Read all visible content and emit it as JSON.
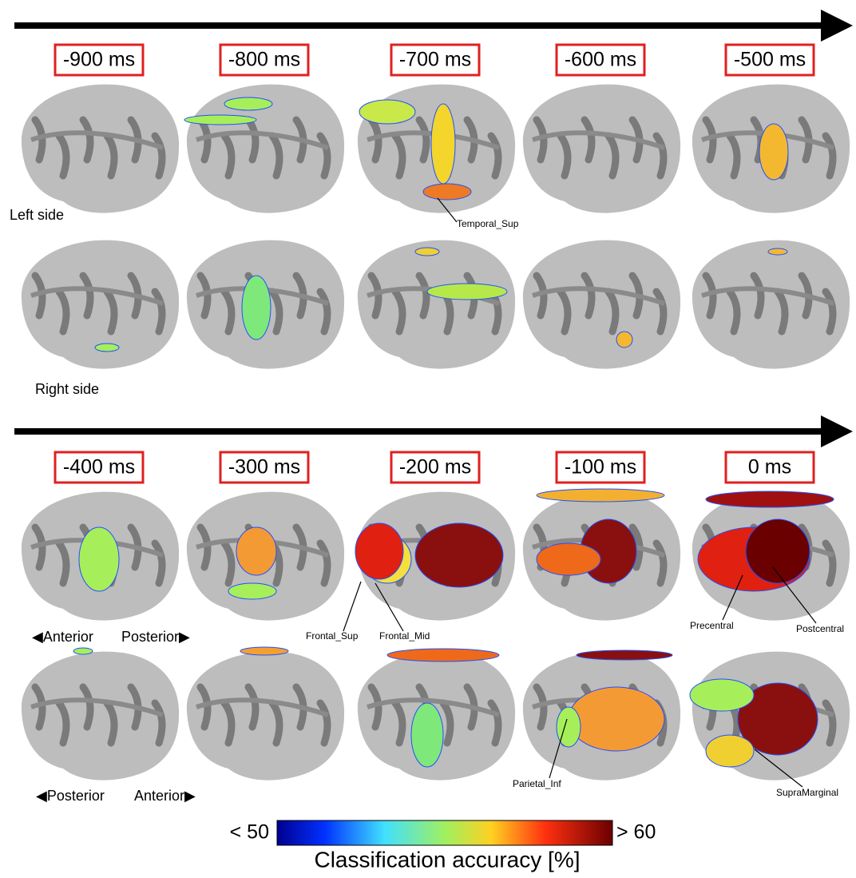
{
  "time_rows": [
    {
      "labels": [
        "-900 ms",
        "-800 ms",
        "-700 ms",
        "-600 ms",
        "-500 ms"
      ]
    },
    {
      "labels": [
        "-400 ms",
        "-300 ms",
        "-200 ms",
        "-100 ms",
        "0 ms"
      ]
    }
  ],
  "side_labels": {
    "left": "Left side",
    "right": "Right side"
  },
  "orientation": {
    "left_hemisphere": {
      "start": "◀Anterior",
      "end": "Posterior▶"
    },
    "right_hemisphere": {
      "start": "◀Posterior",
      "end": "Anterior▶"
    }
  },
  "regions": [
    "Temporal_Sup",
    "Frontal_Sup",
    "Frontal_Mid",
    "Precentral",
    "Postcentral",
    "Parietal_Inf",
    "SupraMarginal"
  ],
  "colorbar": {
    "min_label": "< 50",
    "max_label": "> 60",
    "title": "Classification accuracy [%]"
  }
}
